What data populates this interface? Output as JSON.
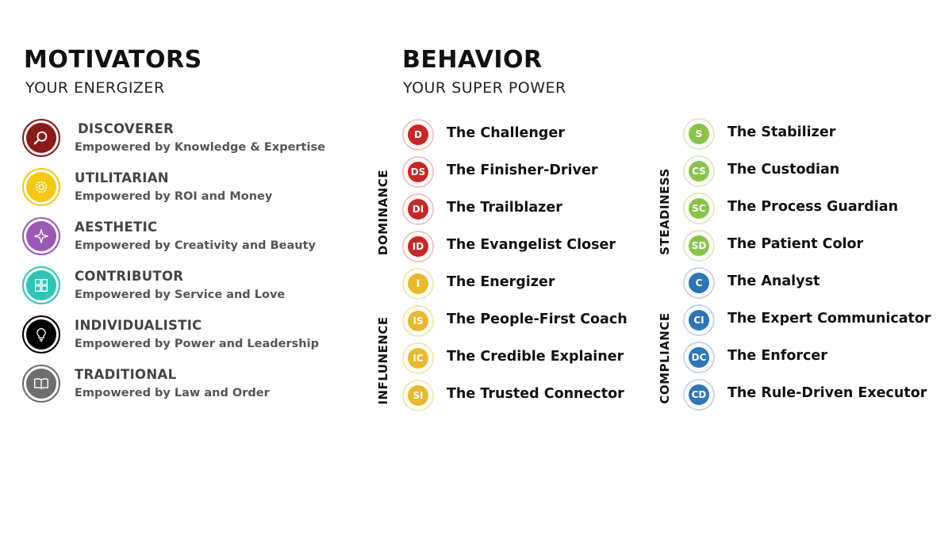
{
  "motivators": {
    "title": "MOTIVATORS",
    "subtitle": "YOUR ENERGIZER",
    "items": [
      {
        "name": "DISCOVERER",
        "description": "Empowered by Knowledge & Expertise",
        "icon": "magnifier-icon",
        "color": "#8B1A1A"
      },
      {
        "name": "UTILITARIAN",
        "description": "Empowered by ROI and Money",
        "icon": "gear-coin-icon",
        "color": "#F2C811"
      },
      {
        "name": "AESTHETIC",
        "description": "Empowered by Creativity and Beauty",
        "icon": "sparkle-icon",
        "color": "#9B59B6"
      },
      {
        "name": "CONTRIBUTOR",
        "description": "Empowered by Service and Love",
        "icon": "puzzle-icon",
        "color": "#2EC4B6"
      },
      {
        "name": "INDIVIDUALISTIC",
        "description": "Empowered by Power and Leadership",
        "icon": "lightbulb-icon",
        "color": "#000000"
      },
      {
        "name": "TRADITIONAL",
        "description": "Empowered by Law and Order",
        "icon": "book-icon",
        "color": "#6E6E6E"
      }
    ]
  },
  "behavior": {
    "title": "BEHAVIOR",
    "subtitle": "YOUR SUPER POWER",
    "groups": [
      {
        "label": "DOMINANCE",
        "color": "#C62828",
        "items": [
          {
            "code": "D",
            "label": "The Challenger"
          },
          {
            "code": "DS",
            "label": "The Finisher-Driver"
          },
          {
            "code": "DI",
            "label": "The Trailblazer"
          },
          {
            "code": "ID",
            "label": "The Evangelist Closer"
          }
        ]
      },
      {
        "label": "INFLUNENCE",
        "color": "#E8B92F",
        "items": [
          {
            "code": "I",
            "label": "The Energizer"
          },
          {
            "code": "IS",
            "label": "The People-First Coach"
          },
          {
            "code": "IC",
            "label": "The Credible Explainer"
          },
          {
            "code": "SI",
            "label": "The Trusted Connector"
          }
        ]
      },
      {
        "label": "STEADINESS",
        "color": "#8BC34A",
        "items": [
          {
            "code": "S",
            "label": "The Stabilizer"
          },
          {
            "code": "CS",
            "label": "The Custodian"
          },
          {
            "code": "SC",
            "label": "The Process Guardian"
          },
          {
            "code": "SD",
            "label": "The Patient Color"
          }
        ]
      },
      {
        "label": "COMPLIANCE",
        "color": "#2E75B6",
        "items": [
          {
            "code": "C",
            "label": "The Analyst"
          },
          {
            "code": "CI",
            "label": "The Expert Communicator"
          },
          {
            "code": "DC",
            "label": "The Enforcer"
          },
          {
            "code": "CD",
            "label": "The Rule-Driven Executor"
          }
        ]
      }
    ]
  }
}
